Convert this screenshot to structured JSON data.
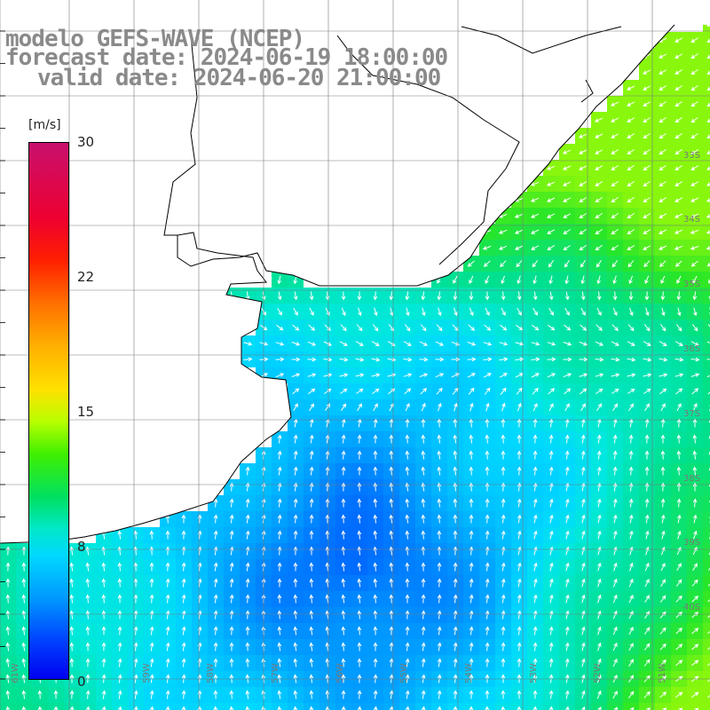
{
  "title": {
    "line1": "modelo GEFS-WAVE (NCEP)",
    "line2": "forecast date: 2024-06-19 18:00:00",
    "line3": "valid date: 2024-06-20 21:00:00"
  },
  "colorbar": {
    "unit": "[m/s]",
    "min": 0,
    "max": 30,
    "ticks": [
      "30",
      "22",
      "15",
      "8",
      "0"
    ]
  },
  "lon_labels": [
    "61W",
    "59W",
    "58W",
    "57W",
    "56W",
    "55W",
    "54W",
    "53W",
    "52W",
    "51W"
  ],
  "lat_labels": [
    "33S",
    "34S",
    "35S",
    "36S",
    "37S",
    "38S",
    "39S",
    "40S"
  ],
  "colors": {
    "land": "#ffffff",
    "grid": "#7a7a7a",
    "coast": "#000000",
    "arrow": "#ffffff",
    "title": "#8a8a8a"
  },
  "map_data": {
    "type": "wind_field",
    "variable": "wind speed",
    "units": "m/s",
    "prevailing_direction_north": "toward N (southerly wind)",
    "prevailing_direction_west": "toward W (easterly wind)",
    "max_speed_region": "southeast, approx 12 m/s",
    "min_speed_region": "central south, approx 3 m/s"
  }
}
